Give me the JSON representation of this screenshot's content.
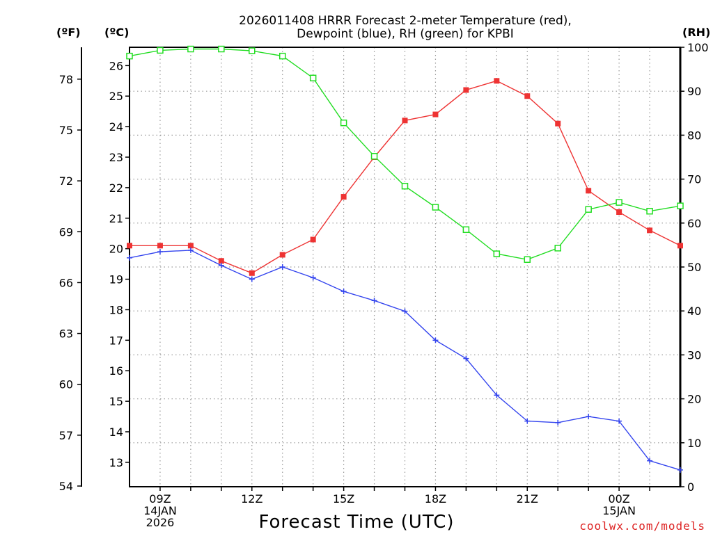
{
  "chart_data": {
    "type": "line",
    "title": [
      "2026011408 HRRR Forecast 2-meter Temperature (red),",
      "Dewpoint (blue), RH (green) for KPBI"
    ],
    "xlabel": "Forecast Time (UTC)",
    "units": {
      "fahrenheit": "(ºF)",
      "celsius": "(ºC)",
      "rh": "(RH)"
    },
    "x_hours": [
      8,
      9,
      10,
      11,
      12,
      13,
      14,
      15,
      16,
      17,
      18,
      19,
      20,
      21,
      22,
      23,
      24,
      25,
      26
    ],
    "xlim": [
      8,
      26
    ],
    "x_ticks": [
      {
        "hour": 9,
        "lines": [
          "09Z",
          "14JAN",
          "2026"
        ]
      },
      {
        "hour": 12,
        "lines": [
          "12Z"
        ]
      },
      {
        "hour": 15,
        "lines": [
          "15Z"
        ]
      },
      {
        "hour": 18,
        "lines": [
          "18Z"
        ]
      },
      {
        "hour": 21,
        "lines": [
          "21Z"
        ]
      },
      {
        "hour": 24,
        "lines": [
          "00Z",
          "15JAN"
        ]
      }
    ],
    "celsius_axis": {
      "ylim": [
        12.2,
        26.6
      ],
      "ticks": [
        13,
        14,
        15,
        16,
        17,
        18,
        19,
        20,
        21,
        22,
        23,
        24,
        25,
        26
      ]
    },
    "fahrenheit_axis": {
      "ticks": [
        54,
        57,
        60,
        63,
        66,
        69,
        72,
        75,
        78
      ]
    },
    "rh_axis": {
      "ylim": [
        0,
        100
      ],
      "ticks": [
        0,
        10,
        20,
        30,
        40,
        50,
        60,
        70,
        80,
        90,
        100
      ]
    },
    "series": [
      {
        "name": "2-meter Temperature",
        "unit": "C",
        "color": "#ee3333",
        "marker": "square-filled",
        "values": [
          20.1,
          20.1,
          20.1,
          19.6,
          19.2,
          19.8,
          20.3,
          21.7,
          23.0,
          24.2,
          24.4,
          25.2,
          25.5,
          25.0,
          24.1,
          21.9,
          21.2,
          20.6,
          20.1
        ]
      },
      {
        "name": "Dewpoint",
        "unit": "C",
        "color": "#3344ee",
        "marker": "plus",
        "values": [
          19.7,
          19.9,
          19.95,
          19.45,
          19.0,
          19.4,
          19.05,
          18.6,
          18.3,
          17.95,
          17.0,
          16.4,
          15.2,
          14.35,
          14.3,
          14.5,
          14.35,
          13.05,
          12.75
        ]
      },
      {
        "name": "RH",
        "unit": "%",
        "color": "#22dd22",
        "marker": "square-open",
        "values": [
          98.0,
          99.3,
          99.6,
          99.6,
          99.2,
          98.0,
          93.0,
          82.8,
          75.2,
          68.4,
          63.6,
          58.5,
          53.0,
          51.7,
          54.3,
          63.1,
          64.7,
          62.7,
          63.9
        ]
      }
    ],
    "watermark": "coolwx.com/models",
    "watermark_color": "#dd2222"
  }
}
